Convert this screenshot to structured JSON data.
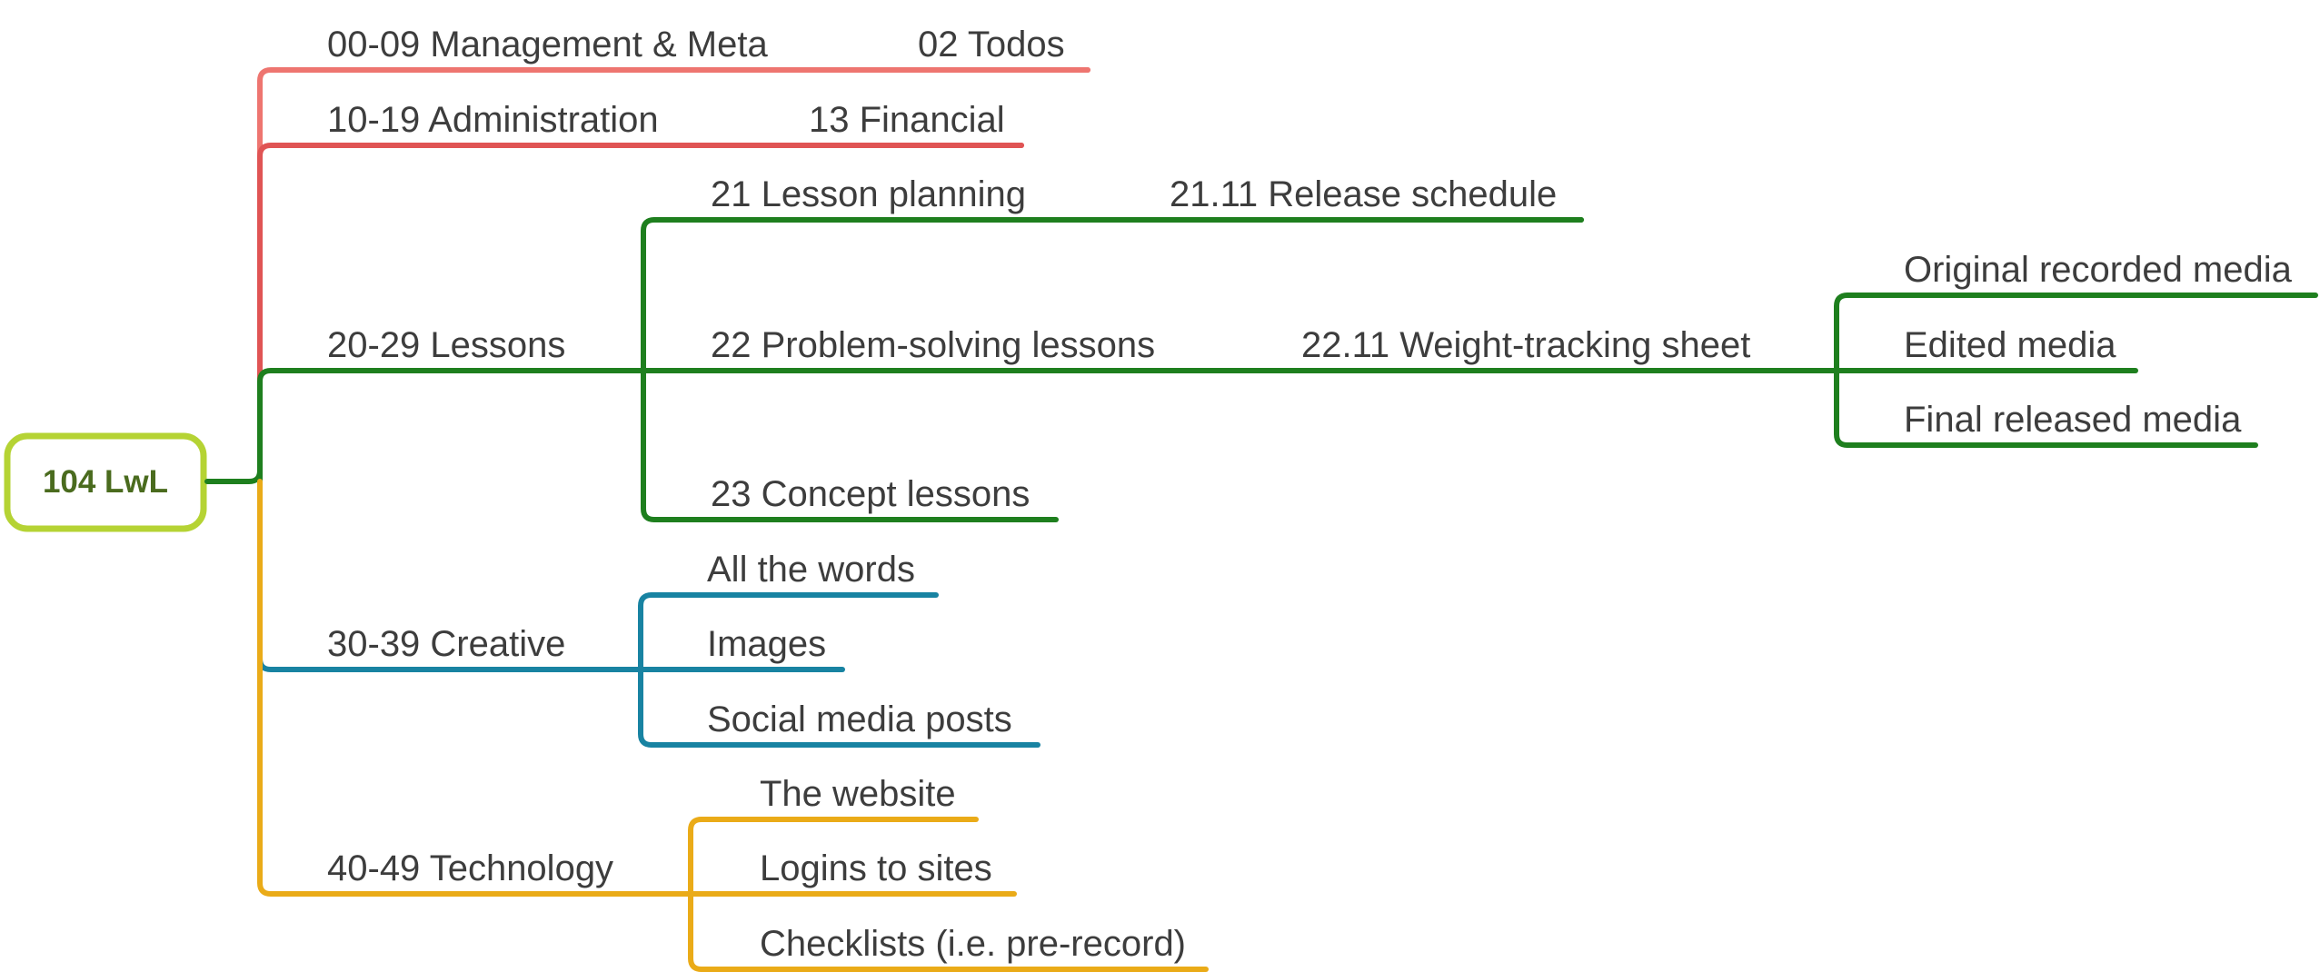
{
  "colors": {
    "background": "#ffffff",
    "root_border": "#b5d334",
    "root_text": "#4a6b1e",
    "label_text": "#3d3d3d",
    "management": "#ee7570",
    "administration": "#e05454",
    "lessons": "#1e7f1e",
    "creative": "#1883a2",
    "technology": "#eaab18"
  },
  "root": {
    "label": "104 LwL"
  },
  "branches": [
    {
      "id": "management",
      "label": "00-09 Management & Meta",
      "color_key": "management",
      "children": [
        {
          "id": "todos",
          "label": "02 Todos"
        }
      ]
    },
    {
      "id": "administration",
      "label": "10-19 Administration",
      "color_key": "administration",
      "children": [
        {
          "id": "financial",
          "label": "13 Financial"
        }
      ]
    },
    {
      "id": "lessons",
      "label": "20-29 Lessons",
      "color_key": "lessons",
      "children": [
        {
          "id": "lesson-planning",
          "label": "21 Lesson planning",
          "children": [
            {
              "id": "release-schedule",
              "label": "21.11 Release schedule"
            }
          ]
        },
        {
          "id": "problem-solving",
          "label": "22 Problem-solving lessons",
          "children": [
            {
              "id": "weight-tracking",
              "label": "22.11 Weight-tracking sheet",
              "children": [
                {
                  "id": "original-media",
                  "label": "Original recorded media"
                },
                {
                  "id": "edited-media",
                  "label": "Edited media"
                },
                {
                  "id": "final-media",
                  "label": "Final released media"
                }
              ]
            }
          ]
        },
        {
          "id": "concept-lessons",
          "label": "23 Concept lessons"
        }
      ]
    },
    {
      "id": "creative",
      "label": "30-39 Creative",
      "color_key": "creative",
      "children": [
        {
          "id": "all-the-words",
          "label": "All the words"
        },
        {
          "id": "images",
          "label": "Images"
        },
        {
          "id": "social-media",
          "label": "Social media posts"
        }
      ]
    },
    {
      "id": "technology",
      "label": "40-49 Technology",
      "color_key": "technology",
      "children": [
        {
          "id": "website",
          "label": "The website"
        },
        {
          "id": "logins",
          "label": "Logins to sites"
        },
        {
          "id": "checklists",
          "label": "Checklists (i.e. pre-record)"
        }
      ]
    }
  ]
}
